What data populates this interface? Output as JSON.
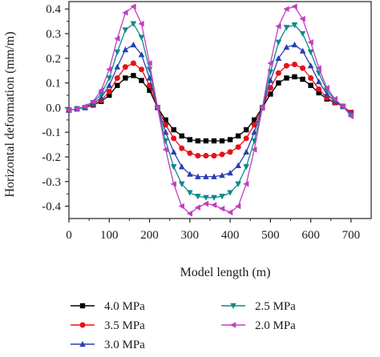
{
  "chart_data": {
    "type": "line",
    "xlabel": "Model length (m)",
    "ylabel": "Horizontal deformation (mm/m)",
    "xlim": [
      0,
      750
    ],
    "ylim": [
      -0.45,
      0.43
    ],
    "x_ticks": [
      "0",
      "100",
      "200",
      "300",
      "400",
      "500",
      "600",
      "700"
    ],
    "y_ticks": [
      "0.4",
      "0.3",
      "0.2",
      "0.1",
      "0.0",
      "-0.1",
      "-0.2",
      "-0.3",
      "-0.4"
    ],
    "grid": false,
    "legend_placement": "bottom",
    "x": [
      0,
      20,
      40,
      60,
      80,
      100,
      120,
      140,
      160,
      180,
      200,
      220,
      240,
      260,
      280,
      300,
      320,
      340,
      360,
      380,
      400,
      420,
      440,
      460,
      480,
      500,
      520,
      540,
      560,
      580,
      600,
      620,
      640,
      660,
      680,
      700
    ],
    "series": [
      {
        "name": "4.0 MPa",
        "marker": "square",
        "color": "#000000",
        "values": [
          -0.01,
          -0.005,
          0.0,
          0.01,
          0.025,
          0.05,
          0.09,
          0.12,
          0.13,
          0.11,
          0.07,
          0.0,
          -0.05,
          -0.09,
          -0.115,
          -0.13,
          -0.135,
          -0.135,
          -0.135,
          -0.135,
          -0.13,
          -0.115,
          -0.09,
          -0.05,
          0.0,
          0.055,
          0.1,
          0.12,
          0.125,
          0.115,
          0.09,
          0.06,
          0.035,
          0.02,
          0.005,
          -0.02
        ]
      },
      {
        "name": "3.5 MPa",
        "marker": "circle",
        "color": "#e8101a",
        "values": [
          -0.01,
          -0.005,
          0.0,
          0.01,
          0.03,
          0.065,
          0.12,
          0.165,
          0.18,
          0.155,
          0.09,
          0.0,
          -0.07,
          -0.125,
          -0.165,
          -0.185,
          -0.195,
          -0.195,
          -0.195,
          -0.19,
          -0.18,
          -0.16,
          -0.125,
          -0.07,
          0.0,
          0.08,
          0.14,
          0.17,
          0.175,
          0.16,
          0.12,
          0.075,
          0.04,
          0.02,
          0.005,
          -0.02
        ]
      },
      {
        "name": "3.0 MPa",
        "marker": "triangle-up",
        "color": "#2a3fb0",
        "values": [
          -0.01,
          -0.005,
          0.0,
          0.015,
          0.04,
          0.09,
          0.165,
          0.235,
          0.255,
          0.215,
          0.12,
          0.0,
          -0.1,
          -0.18,
          -0.24,
          -0.27,
          -0.28,
          -0.28,
          -0.28,
          -0.275,
          -0.265,
          -0.235,
          -0.18,
          -0.1,
          0.0,
          0.11,
          0.2,
          0.245,
          0.255,
          0.23,
          0.17,
          0.105,
          0.055,
          0.025,
          0.005,
          -0.025
        ]
      },
      {
        "name": "2.5 MPa",
        "marker": "triangle-down",
        "color": "#0d8a86",
        "values": [
          -0.01,
          -0.005,
          0.0,
          0.02,
          0.055,
          0.12,
          0.225,
          0.315,
          0.34,
          0.285,
          0.155,
          0.0,
          -0.135,
          -0.24,
          -0.31,
          -0.345,
          -0.36,
          -0.365,
          -0.365,
          -0.36,
          -0.345,
          -0.31,
          -0.24,
          -0.135,
          0.0,
          0.145,
          0.265,
          0.325,
          0.335,
          0.3,
          0.225,
          0.14,
          0.07,
          0.03,
          0.005,
          -0.03
        ]
      },
      {
        "name": "2.0 MPa",
        "marker": "triangle-left",
        "color": "#c040c0",
        "values": [
          -0.01,
          -0.005,
          0.005,
          0.025,
          0.07,
          0.155,
          0.28,
          0.385,
          0.41,
          0.34,
          0.18,
          0.0,
          -0.17,
          -0.31,
          -0.4,
          -0.43,
          -0.405,
          -0.39,
          -0.395,
          -0.41,
          -0.425,
          -0.4,
          -0.31,
          -0.17,
          0.0,
          0.18,
          0.33,
          0.4,
          0.41,
          0.36,
          0.265,
          0.16,
          0.08,
          0.035,
          0.005,
          -0.035
        ]
      }
    ]
  }
}
